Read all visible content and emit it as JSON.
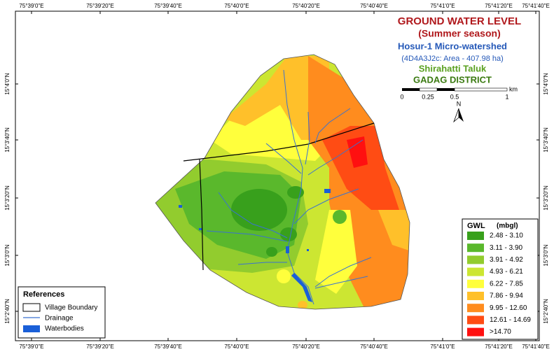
{
  "title": {
    "main": "GROUND WATER LEVEL",
    "season": "(Summer season)",
    "watershed": "Hosur-1  Micro-watershed",
    "code_area": "(4D4A3J2c: Area - 407.98 ha)",
    "taluk": "Shirahatti Taluk",
    "district": "GADAG DISTRICT"
  },
  "scale_bar": {
    "labels": [
      "0",
      "0.25",
      "0.5",
      "1"
    ],
    "unit": "km"
  },
  "north": "N",
  "longitude_labels": [
    "75°39'0\"E",
    "75°39'20\"E",
    "75°39'40\"E",
    "75°40'0\"E",
    "75°40'20\"E",
    "75°40'40\"E",
    "75°41'0\"E",
    "75°41'20\"E",
    "75°41'40\"E"
  ],
  "latitude_labels": [
    "15°4'0\"N",
    "15°3'40\"N",
    "15°3'20\"N",
    "15°3'0\"N",
    "15°2'40\"N"
  ],
  "legend": {
    "title": "GWL",
    "unit": "(mbgl)",
    "items": [
      {
        "label": "2.48 - 3.10",
        "color": "#38a01c"
      },
      {
        "label": "3.11 - 3.90",
        "color": "#5ab82c"
      },
      {
        "label": "3.91 - 4.92",
        "color": "#92cc2e"
      },
      {
        "label": "4.93 - 6.21",
        "color": "#cce632"
      },
      {
        "label": "6.22 - 7.85",
        "color": "#ffff3c"
      },
      {
        "label": "7.86 - 9.94",
        "color": "#ffc02a"
      },
      {
        "label": "9.95 - 12.60",
        "color": "#ff8c1e"
      },
      {
        "label": "12.61 - 14.69",
        "color": "#ff4c14"
      },
      {
        "label": ">14.70",
        "color": "#ff1010"
      }
    ]
  },
  "references": {
    "title": "References",
    "items": [
      {
        "label": "Village Boundary"
      },
      {
        "label": "Drainage"
      },
      {
        "label": "Waterbodies"
      }
    ]
  }
}
